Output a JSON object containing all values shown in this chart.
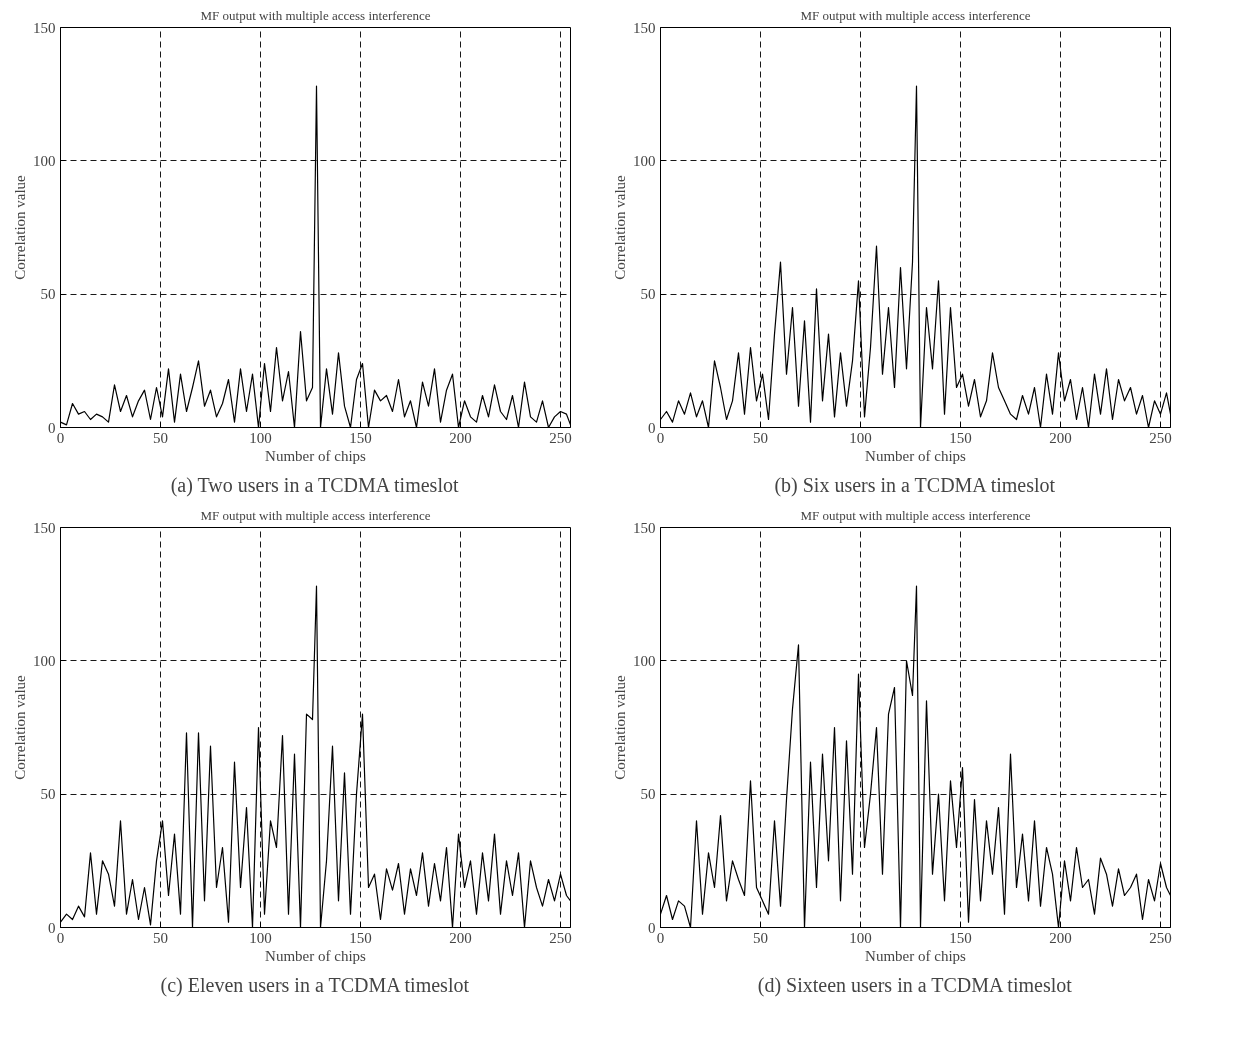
{
  "chart_data": [
    {
      "type": "line",
      "title": "MF output with multiple access interference",
      "xlabel": "Number of chips",
      "ylabel": "Correlation value",
      "annotations": [
        "(a) Two users in a TCDMA timeslot"
      ],
      "xlim": [
        0,
        255
      ],
      "ylim": [
        0,
        150
      ],
      "xticks": [
        0,
        50,
        100,
        150,
        200,
        250
      ],
      "yticks": [
        0,
        50,
        100,
        150
      ],
      "grid": true,
      "line_style": "solid",
      "x": [
        0,
        3,
        6,
        9,
        12,
        15,
        18,
        21,
        24,
        27,
        30,
        33,
        36,
        39,
        42,
        45,
        48,
        51,
        54,
        57,
        60,
        63,
        66,
        69,
        72,
        75,
        78,
        81,
        84,
        87,
        90,
        93,
        96,
        99,
        102,
        105,
        108,
        111,
        114,
        117,
        120,
        123,
        126,
        128,
        130,
        133,
        136,
        139,
        142,
        145,
        148,
        151,
        154,
        157,
        160,
        163,
        166,
        169,
        172,
        175,
        178,
        181,
        184,
        187,
        190,
        193,
        196,
        199,
        202,
        205,
        208,
        211,
        214,
        217,
        220,
        223,
        226,
        229,
        232,
        235,
        238,
        241,
        244,
        247,
        250,
        253,
        255
      ],
      "series": [
        {
          "color": "#000000",
          "values": [
            2,
            1,
            9,
            5,
            6,
            3,
            5,
            4,
            2,
            16,
            6,
            12,
            4,
            10,
            14,
            3,
            15,
            4,
            22,
            2,
            20,
            6,
            15,
            25,
            8,
            14,
            4,
            9,
            18,
            2,
            22,
            6,
            20,
            0,
            24,
            6,
            30,
            10,
            21,
            0,
            36,
            10,
            15,
            128,
            0,
            22,
            5,
            28,
            8,
            0,
            18,
            24,
            0,
            14,
            10,
            12,
            6,
            18,
            4,
            10,
            0,
            17,
            8,
            22,
            2,
            14,
            20,
            0,
            10,
            4,
            2,
            12,
            4,
            16,
            6,
            3,
            12,
            0,
            17,
            4,
            2,
            10,
            0,
            4,
            6,
            5,
            1
          ]
        }
      ]
    },
    {
      "type": "line",
      "title": "MF output with multiple access interference",
      "xlabel": "Number of chips",
      "ylabel": "Correlation value",
      "annotations": [
        "(b) Six users in a TCDMA timeslot"
      ],
      "xlim": [
        0,
        255
      ],
      "ylim": [
        0,
        150
      ],
      "xticks": [
        0,
        50,
        100,
        150,
        200,
        250
      ],
      "yticks": [
        0,
        50,
        100,
        150
      ],
      "grid": true,
      "line_style": "solid",
      "x": [
        0,
        3,
        6,
        9,
        12,
        15,
        18,
        21,
        24,
        27,
        30,
        33,
        36,
        39,
        42,
        45,
        48,
        51,
        54,
        57,
        60,
        63,
        66,
        69,
        72,
        75,
        78,
        81,
        84,
        87,
        90,
        93,
        96,
        99,
        102,
        105,
        108,
        111,
        114,
        117,
        120,
        123,
        126,
        128,
        130,
        133,
        136,
        139,
        142,
        145,
        148,
        151,
        154,
        157,
        160,
        163,
        166,
        169,
        172,
        175,
        178,
        181,
        184,
        187,
        190,
        193,
        196,
        199,
        202,
        205,
        208,
        211,
        214,
        217,
        220,
        223,
        226,
        229,
        232,
        235,
        238,
        241,
        244,
        247,
        250,
        253,
        255
      ],
      "series": [
        {
          "color": "#000000",
          "values": [
            3,
            6,
            2,
            10,
            5,
            13,
            4,
            10,
            0,
            25,
            15,
            3,
            10,
            28,
            5,
            30,
            10,
            20,
            3,
            35,
            62,
            20,
            45,
            8,
            40,
            2,
            52,
            10,
            35,
            4,
            28,
            8,
            25,
            55,
            4,
            30,
            68,
            20,
            45,
            15,
            60,
            22,
            62,
            128,
            0,
            45,
            22,
            55,
            5,
            45,
            15,
            20,
            8,
            18,
            4,
            10,
            28,
            15,
            10,
            5,
            3,
            12,
            5,
            15,
            0,
            20,
            5,
            28,
            10,
            18,
            3,
            15,
            0,
            20,
            5,
            22,
            3,
            18,
            10,
            15,
            5,
            12,
            0,
            10,
            5,
            13,
            5
          ]
        }
      ]
    },
    {
      "type": "line",
      "title": "MF output with multiple access interference",
      "xlabel": "Number of chips",
      "ylabel": "Correlation value",
      "annotations": [
        "(c) Eleven users in a TCDMA timeslot"
      ],
      "xlim": [
        0,
        255
      ],
      "ylim": [
        0,
        150
      ],
      "xticks": [
        0,
        50,
        100,
        150,
        200,
        250
      ],
      "yticks": [
        0,
        50,
        100,
        150
      ],
      "grid": true,
      "line_style": "solid",
      "x": [
        0,
        3,
        6,
        9,
        12,
        15,
        18,
        21,
        24,
        27,
        30,
        33,
        36,
        39,
        42,
        45,
        48,
        51,
        54,
        57,
        60,
        63,
        66,
        69,
        72,
        75,
        78,
        81,
        84,
        87,
        90,
        93,
        96,
        99,
        102,
        105,
        108,
        111,
        114,
        117,
        120,
        123,
        126,
        128,
        130,
        133,
        136,
        139,
        142,
        145,
        148,
        151,
        154,
        157,
        160,
        163,
        166,
        169,
        172,
        175,
        178,
        181,
        184,
        187,
        190,
        193,
        196,
        199,
        202,
        205,
        208,
        211,
        214,
        217,
        220,
        223,
        226,
        229,
        232,
        235,
        238,
        241,
        244,
        247,
        250,
        253,
        255
      ],
      "series": [
        {
          "color": "#000000",
          "values": [
            2,
            5,
            3,
            8,
            4,
            28,
            5,
            25,
            20,
            8,
            40,
            5,
            18,
            3,
            15,
            1,
            25,
            40,
            12,
            35,
            5,
            73,
            0,
            73,
            10,
            68,
            15,
            30,
            2,
            62,
            15,
            45,
            0,
            75,
            5,
            40,
            30,
            72,
            5,
            65,
            0,
            80,
            78,
            128,
            0,
            25,
            68,
            10,
            58,
            5,
            50,
            80,
            15,
            20,
            3,
            22,
            14,
            24,
            5,
            22,
            12,
            28,
            8,
            24,
            10,
            30,
            0,
            35,
            15,
            25,
            5,
            28,
            10,
            35,
            5,
            25,
            12,
            28,
            0,
            25,
            15,
            8,
            18,
            10,
            20,
            12,
            10
          ]
        }
      ]
    },
    {
      "type": "line",
      "title": "MF output with multiple access interference",
      "xlabel": "Number of chips",
      "ylabel": "Correlation value",
      "annotations": [
        "(d) Sixteen users in a TCDMA timeslot"
      ],
      "xlim": [
        0,
        255
      ],
      "ylim": [
        0,
        150
      ],
      "xticks": [
        0,
        50,
        100,
        150,
        200,
        250
      ],
      "yticks": [
        0,
        50,
        100,
        150
      ],
      "grid": true,
      "line_style": "solid",
      "x": [
        0,
        3,
        6,
        9,
        12,
        15,
        18,
        21,
        24,
        27,
        30,
        33,
        36,
        39,
        42,
        45,
        48,
        51,
        54,
        57,
        60,
        63,
        66,
        69,
        72,
        75,
        78,
        81,
        84,
        87,
        90,
        93,
        96,
        99,
        102,
        105,
        108,
        111,
        114,
        117,
        120,
        123,
        126,
        128,
        130,
        133,
        136,
        139,
        142,
        145,
        148,
        151,
        154,
        157,
        160,
        163,
        166,
        169,
        172,
        175,
        178,
        181,
        184,
        187,
        190,
        193,
        196,
        199,
        202,
        205,
        208,
        211,
        214,
        217,
        220,
        223,
        226,
        229,
        232,
        235,
        238,
        241,
        244,
        247,
        250,
        253,
        255
      ],
      "series": [
        {
          "color": "#000000",
          "values": [
            5,
            12,
            3,
            10,
            8,
            0,
            40,
            5,
            28,
            15,
            42,
            10,
            25,
            18,
            12,
            55,
            15,
            10,
            5,
            40,
            8,
            48,
            82,
            106,
            0,
            62,
            15,
            65,
            25,
            75,
            10,
            70,
            20,
            95,
            30,
            50,
            75,
            20,
            80,
            90,
            0,
            100,
            87,
            128,
            0,
            85,
            20,
            50,
            10,
            55,
            30,
            60,
            2,
            48,
            10,
            40,
            20,
            45,
            5,
            65,
            15,
            35,
            10,
            40,
            8,
            30,
            20,
            0,
            25,
            10,
            30,
            15,
            18,
            5,
            26,
            20,
            8,
            22,
            12,
            15,
            20,
            3,
            18,
            10,
            24,
            15,
            12
          ]
        }
      ]
    }
  ]
}
